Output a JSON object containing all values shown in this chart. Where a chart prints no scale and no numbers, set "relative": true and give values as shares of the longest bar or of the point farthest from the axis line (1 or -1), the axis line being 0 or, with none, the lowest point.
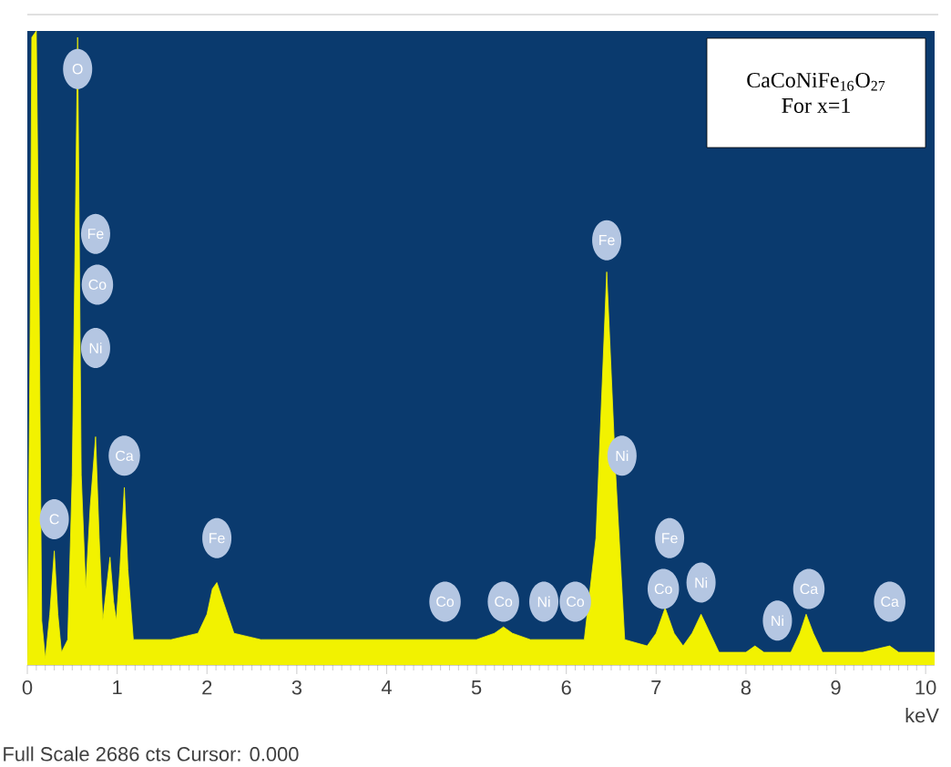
{
  "chart_data": {
    "type": "area",
    "relative": true,
    "xlabel": "keV",
    "xlim": [
      0,
      10.1
    ],
    "xticks": [
      0,
      1,
      2,
      3,
      4,
      5,
      6,
      7,
      8,
      9,
      10
    ],
    "series": [
      {
        "color": "#f2f200",
        "x": [
          0,
          0.03,
          0.05,
          0.1,
          0.13,
          0.16,
          0.2,
          0.25,
          0.3,
          0.34,
          0.38,
          0.45,
          0.5,
          0.56,
          0.6,
          0.65,
          0.7,
          0.76,
          0.8,
          0.84,
          0.88,
          0.92,
          0.96,
          0.99,
          1.03,
          1.08,
          1.12,
          1.18,
          1.3,
          1.6,
          1.9,
          2.0,
          2.06,
          2.11,
          2.18,
          2.3,
          2.6,
          3.0,
          3.5,
          4.0,
          4.5,
          5.0,
          5.2,
          5.3,
          5.4,
          5.6,
          5.9,
          6.2,
          6.33,
          6.45,
          6.55,
          6.65,
          6.9,
          7.0,
          7.1,
          7.2,
          7.3,
          7.4,
          7.5,
          7.6,
          7.7,
          8.0,
          8.1,
          8.2,
          8.5,
          8.6,
          8.67,
          8.75,
          8.85,
          9.3,
          9.6,
          9.7,
          10.0,
          10.1
        ],
        "values": [
          0,
          0.5,
          0.99,
          1.0,
          0.6,
          0.07,
          0.01,
          0.08,
          0.18,
          0.08,
          0.02,
          0.04,
          0.3,
          0.99,
          0.3,
          0.12,
          0.25,
          0.36,
          0.2,
          0.07,
          0.12,
          0.17,
          0.1,
          0.07,
          0.15,
          0.28,
          0.15,
          0.04,
          0.04,
          0.04,
          0.05,
          0.08,
          0.12,
          0.13,
          0.1,
          0.05,
          0.04,
          0.04,
          0.04,
          0.04,
          0.04,
          0.04,
          0.05,
          0.06,
          0.05,
          0.04,
          0.04,
          0.04,
          0.2,
          0.62,
          0.3,
          0.04,
          0.03,
          0.05,
          0.09,
          0.05,
          0.03,
          0.05,
          0.08,
          0.05,
          0.02,
          0.02,
          0.03,
          0.02,
          0.02,
          0.05,
          0.08,
          0.05,
          0.02,
          0.02,
          0.03,
          0.02,
          0.02,
          0.02
        ]
      }
    ],
    "annotations": [
      "CaCoNiFe$_{16}$O$_{27}$",
      "For x=1",
      "Full Scale 2686 cts Cursor: 0.000",
      {
        "text": "O",
        "x": 0.56,
        "y": 0.94
      },
      {
        "text": "Fe",
        "x": 0.76,
        "y": 0.68
      },
      {
        "text": "Co",
        "x": 0.78,
        "y": 0.6
      },
      {
        "text": "Ni",
        "x": 0.76,
        "y": 0.5
      },
      {
        "text": "C",
        "x": 0.3,
        "y": 0.23
      },
      {
        "text": "Ca",
        "x": 1.08,
        "y": 0.33
      },
      {
        "text": "Fe",
        "x": 2.11,
        "y": 0.2
      },
      {
        "text": "Co",
        "x": 4.65,
        "y": 0.1
      },
      {
        "text": "Co",
        "x": 5.3,
        "y": 0.1
      },
      {
        "text": "Ni",
        "x": 5.75,
        "y": 0.1
      },
      {
        "text": "Co",
        "x": 6.1,
        "y": 0.1
      },
      {
        "text": "Fe",
        "x": 6.45,
        "y": 0.67
      },
      {
        "text": "Ni",
        "x": 6.62,
        "y": 0.33
      },
      {
        "text": "Fe",
        "x": 7.15,
        "y": 0.2
      },
      {
        "text": "Co",
        "x": 7.08,
        "y": 0.12
      },
      {
        "text": "Ni",
        "x": 7.5,
        "y": 0.13
      },
      {
        "text": "Ni",
        "x": 8.35,
        "y": 0.07
      },
      {
        "text": "Ca",
        "x": 8.7,
        "y": 0.12
      },
      {
        "text": "Ca",
        "x": 9.6,
        "y": 0.1
      }
    ]
  }
}
